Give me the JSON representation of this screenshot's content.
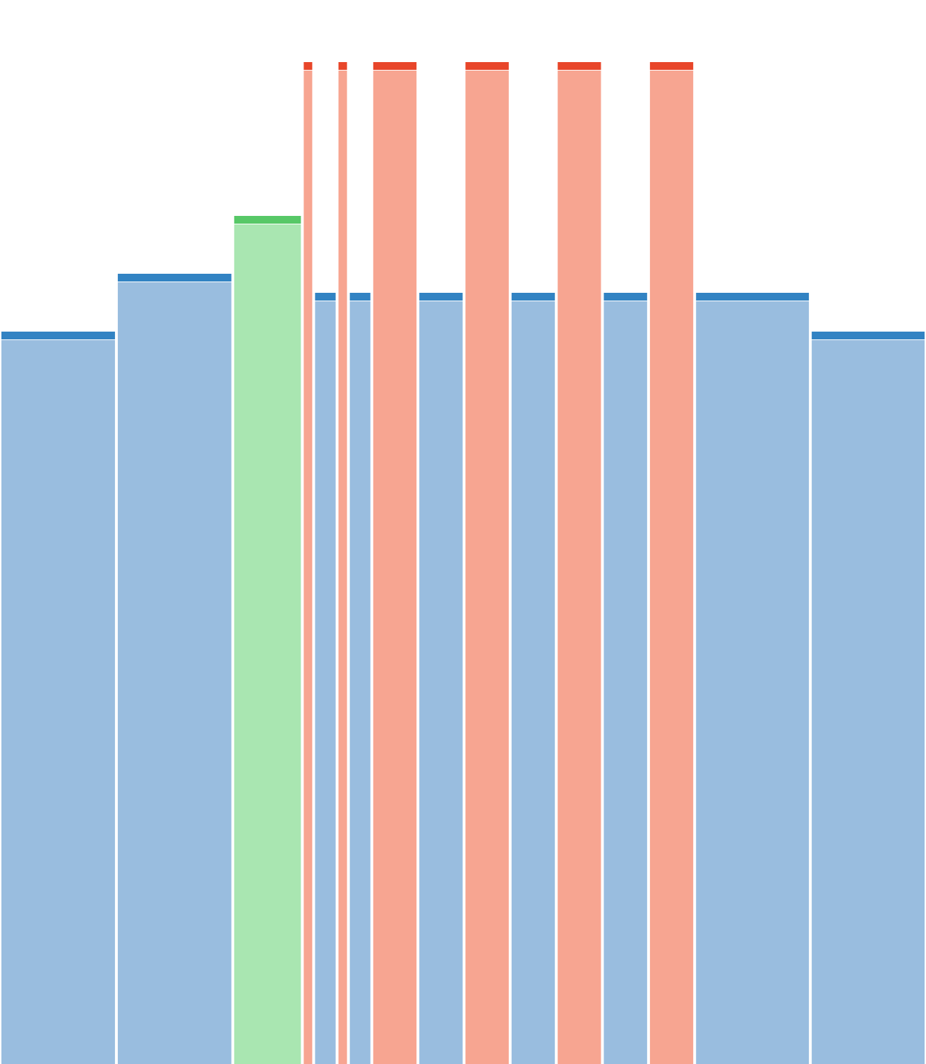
{
  "chart_data": {
    "type": "bar",
    "title": "",
    "xlabel": "",
    "ylabel": "",
    "grid": false,
    "legend": "none",
    "ylim": [
      0,
      1420
    ],
    "colors": {
      "blue": {
        "fill": "#99bddf",
        "cap": "#3283c3"
      },
      "green": {
        "fill": "#a9e6b1",
        "cap": "#57c867"
      },
      "red": {
        "fill": "#f7a591",
        "cap": "#e8462a"
      }
    },
    "bars": [
      {
        "color": "blue",
        "weight": 160,
        "value": 1038
      },
      {
        "color": "blue",
        "weight": 160,
        "value": 1120
      },
      {
        "color": "green",
        "weight": 94,
        "value": 1202
      },
      {
        "color": "red",
        "weight": 12,
        "value": 1420
      },
      {
        "color": "blue",
        "weight": 29,
        "value": 1093
      },
      {
        "color": "red",
        "weight": 12,
        "value": 1420
      },
      {
        "color": "blue",
        "weight": 29,
        "value": 1093
      },
      {
        "color": "red",
        "weight": 61,
        "value": 1420
      },
      {
        "color": "blue",
        "weight": 61,
        "value": 1093
      },
      {
        "color": "red",
        "weight": 61,
        "value": 1420
      },
      {
        "color": "blue",
        "weight": 61,
        "value": 1093
      },
      {
        "color": "red",
        "weight": 61,
        "value": 1420
      },
      {
        "color": "blue",
        "weight": 61,
        "value": 1093
      },
      {
        "color": "red",
        "weight": 61,
        "value": 1420
      },
      {
        "color": "blue",
        "weight": 159,
        "value": 1093
      },
      {
        "color": "blue",
        "weight": 159,
        "value": 1038
      }
    ]
  }
}
